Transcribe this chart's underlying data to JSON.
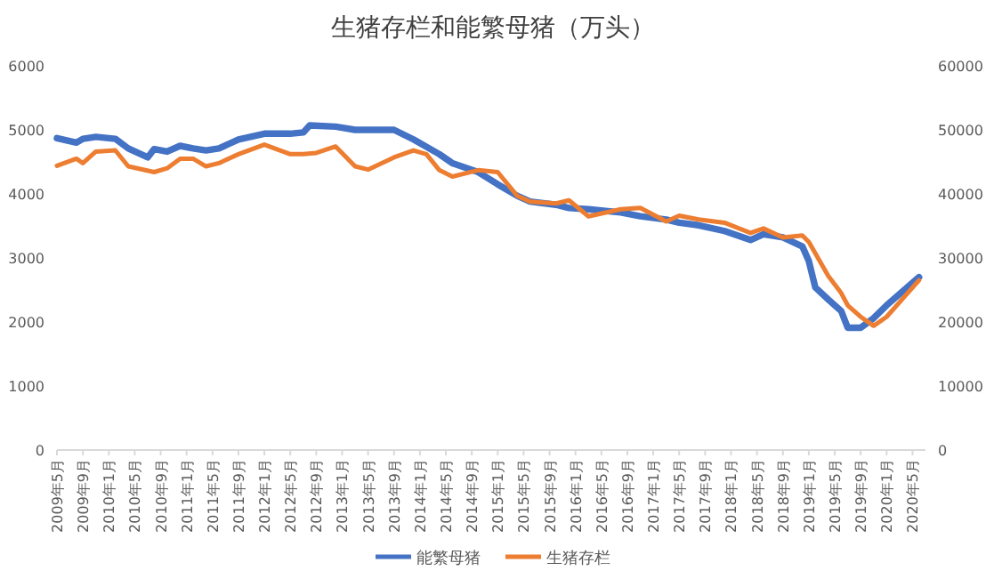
{
  "chart_data": {
    "type": "line",
    "title": "生猪存栏和能繁母猪（万头）",
    "xlim": [
      "2009-05",
      "2020-07"
    ],
    "xticks": [
      {
        "value": "2009-05",
        "label": "2009年5月"
      },
      {
        "value": "2009-09",
        "label": "2009年9月"
      },
      {
        "value": "2010-01",
        "label": "2010年1月"
      },
      {
        "value": "2010-05",
        "label": "2010年5月"
      },
      {
        "value": "2010-09",
        "label": "2010年9月"
      },
      {
        "value": "2011-01",
        "label": "2011年1月"
      },
      {
        "value": "2011-05",
        "label": "2011年5月"
      },
      {
        "value": "2011-09",
        "label": "2011年9月"
      },
      {
        "value": "2012-01",
        "label": "2012年1月"
      },
      {
        "value": "2012-05",
        "label": "2012年5月"
      },
      {
        "value": "2012-09",
        "label": "2012年9月"
      },
      {
        "value": "2013-01",
        "label": "2013年1月"
      },
      {
        "value": "2013-05",
        "label": "2013年5月"
      },
      {
        "value": "2013-09",
        "label": "2013年9月"
      },
      {
        "value": "2014-01",
        "label": "2014年1月"
      },
      {
        "value": "2014-05",
        "label": "2014年5月"
      },
      {
        "value": "2014-09",
        "label": "2014年9月"
      },
      {
        "value": "2015-01",
        "label": "2015年1月"
      },
      {
        "value": "2015-05",
        "label": "2015年5月"
      },
      {
        "value": "2015-09",
        "label": "2015年9月"
      },
      {
        "value": "2016-01",
        "label": "2016年1月"
      },
      {
        "value": "2016-05",
        "label": "2016年5月"
      },
      {
        "value": "2016-09",
        "label": "2016年9月"
      },
      {
        "value": "2017-01",
        "label": "2017年1月"
      },
      {
        "value": "2017-05",
        "label": "2017年5月"
      },
      {
        "value": "2017-09",
        "label": "2017年9月"
      },
      {
        "value": "2018-01",
        "label": "2018年1月"
      },
      {
        "value": "2018-05",
        "label": "2018年5月"
      },
      {
        "value": "2018-09",
        "label": "2018年9月"
      },
      {
        "value": "2019-01",
        "label": "2019年1月"
      },
      {
        "value": "2019-05",
        "label": "2019年5月"
      },
      {
        "value": "2019-09",
        "label": "2019年9月"
      },
      {
        "value": "2020-01",
        "label": "2020年1月"
      },
      {
        "value": "2020-05",
        "label": "2020年5月"
      }
    ],
    "ylim": [
      0,
      6000
    ],
    "yticks": [
      0,
      1000,
      2000,
      3000,
      4000,
      5000,
      6000
    ],
    "y2lim": [
      0,
      60000
    ],
    "y2ticks": [
      0,
      10000,
      20000,
      30000,
      40000,
      50000,
      60000
    ],
    "legend": "bottom",
    "grid": false,
    "marker": "none",
    "series": [
      {
        "name": "能繁母猪",
        "color": "#4472c4",
        "x": [
          "2009-05",
          "2009-08",
          "2009-09",
          "2009-11",
          "2010-02",
          "2010-04",
          "2010-07",
          "2010-08",
          "2010-10",
          "2010-12",
          "2011-02",
          "2011-04",
          "2011-06",
          "2011-09",
          "2012-01",
          "2012-05",
          "2012-07",
          "2012-08",
          "2012-12",
          "2013-03",
          "2013-09",
          "2013-12",
          "2014-04",
          "2014-06",
          "2014-10",
          "2015-01",
          "2015-04",
          "2015-06",
          "2015-10",
          "2015-12",
          "2016-03",
          "2016-08",
          "2016-11",
          "2017-03",
          "2017-05",
          "2017-08",
          "2017-12",
          "2018-04",
          "2018-06",
          "2018-09",
          "2018-12",
          "2019-01",
          "2019-02",
          "2019-04",
          "2019-06",
          "2019-07",
          "2019-09",
          "2019-11",
          "2020-01",
          "2020-06"
        ],
        "values": [
          4870,
          4800,
          4860,
          4890,
          4860,
          4710,
          4570,
          4700,
          4660,
          4750,
          4710,
          4680,
          4710,
          4850,
          4940,
          4940,
          4960,
          5070,
          5050,
          5000,
          5000,
          4850,
          4620,
          4480,
          4340,
          4150,
          3970,
          3880,
          3830,
          3780,
          3760,
          3710,
          3650,
          3600,
          3550,
          3510,
          3420,
          3280,
          3370,
          3320,
          3180,
          2950,
          2540,
          2350,
          2170,
          1910,
          1910,
          2060,
          2260,
          2700
        ]
      },
      {
        "name": "生猪存栏",
        "color": "#ed7d31",
        "axis": "y2",
        "x": [
          "2009-05",
          "2009-08",
          "2009-09",
          "2009-11",
          "2010-02",
          "2010-04",
          "2010-08",
          "2010-10",
          "2010-12",
          "2011-02",
          "2011-04",
          "2011-06",
          "2011-09",
          "2012-01",
          "2012-05",
          "2012-07",
          "2012-09",
          "2012-12",
          "2013-03",
          "2013-05",
          "2013-09",
          "2013-12",
          "2014-02",
          "2014-04",
          "2014-06",
          "2014-10",
          "2015-01",
          "2015-04",
          "2015-06",
          "2015-10",
          "2015-12",
          "2016-03",
          "2016-08",
          "2016-11",
          "2017-03",
          "2017-05",
          "2017-08",
          "2017-12",
          "2018-04",
          "2018-06",
          "2018-09",
          "2018-12",
          "2019-01",
          "2019-04",
          "2019-06",
          "2019-07",
          "2019-09",
          "2019-11",
          "2020-01",
          "2020-06"
        ],
        "values": [
          44400,
          45500,
          44800,
          46600,
          46800,
          44300,
          43400,
          44000,
          45500,
          45500,
          44300,
          44800,
          46200,
          47700,
          46200,
          46200,
          46400,
          47400,
          44300,
          43800,
          45700,
          46800,
          46200,
          43700,
          42700,
          43700,
          43400,
          39700,
          38800,
          38500,
          39000,
          36500,
          37600,
          37800,
          35700,
          36600,
          36000,
          35500,
          33900,
          34600,
          33200,
          33500,
          32500,
          27200,
          24500,
          22600,
          20800,
          19400,
          20800,
          26500
        ]
      }
    ]
  }
}
